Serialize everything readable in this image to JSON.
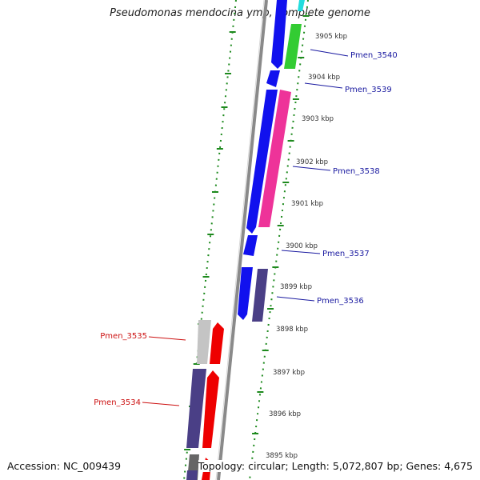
{
  "title": "Pseudomonas mendocina ymp, complete genome",
  "accession": "Accession: NC_009439",
  "topology": "Topology: circular; Length: 5,072,807 bp; Genes: 4,675",
  "colors": {
    "background": "#ffffff",
    "backbone": "#8a8a8a",
    "gc_ticks": "#1e8a1e",
    "forward_label": "#1a1aa0",
    "reverse_label": "#cc1111",
    "blue": "#1111ee",
    "green": "#33cc33",
    "cyan": "#22dddd",
    "pink": "#ee3399",
    "slate": "#4a3f86",
    "silver": "#c4c4c4",
    "red": "#ee0000",
    "gray": "#666666"
  },
  "kbp_ticks": [
    "3905 kbp",
    "3904 kbp",
    "3903 kbp",
    "3902 kbp",
    "3901 kbp",
    "3900 kbp",
    "3899 kbp",
    "3898 kbp",
    "3897 kbp",
    "3896 kbp",
    "3895 kbp"
  ],
  "gene_labels": {
    "forward": [
      "Pmen_3540",
      "Pmen_3539",
      "Pmen_3538",
      "Pmen_3537",
      "Pmen_3536"
    ],
    "reverse": [
      "Pmen_3535",
      "Pmen_3534"
    ]
  }
}
